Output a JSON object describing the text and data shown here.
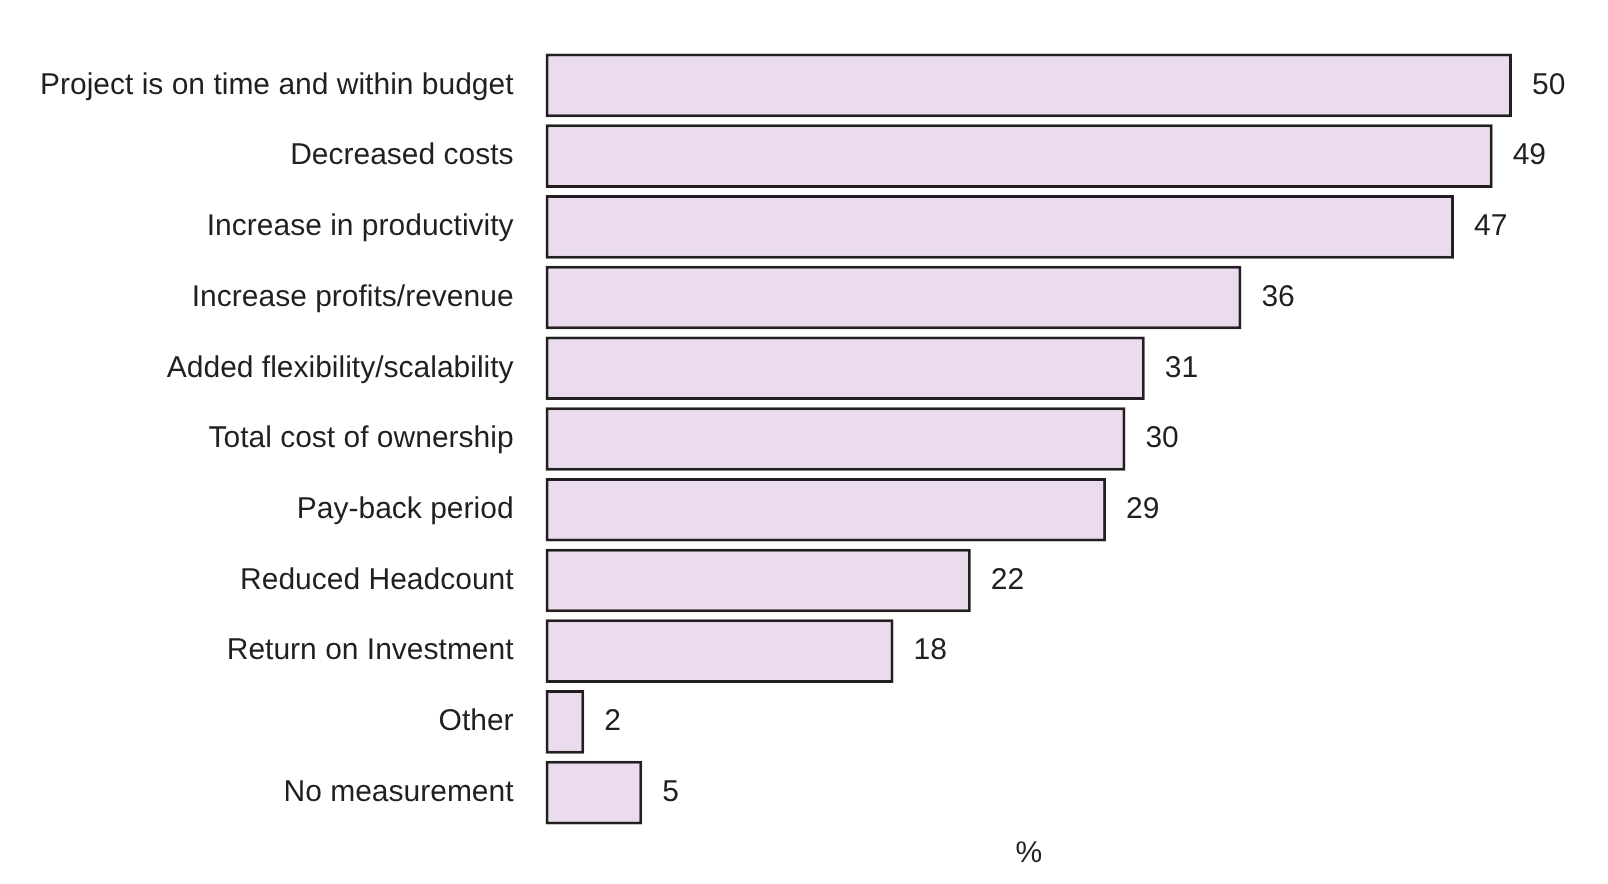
{
  "chart_data": {
    "type": "bar",
    "orientation": "horizontal",
    "xlabel": "%",
    "categories": [
      "Project is on time and within budget",
      "Decreased costs",
      "Increase in productivity",
      "Increase profits/revenue",
      "Added flexibility/scalability",
      "Total cost of ownership",
      "Pay-back period",
      "Reduced Headcount",
      "Return on Investment",
      "Other",
      "No measurement"
    ],
    "values": [
      50,
      49,
      47,
      36,
      31,
      30,
      29,
      22,
      18,
      2,
      5
    ],
    "color": "#eadcee",
    "data_labels": true,
    "grid": false,
    "legend": false
  }
}
